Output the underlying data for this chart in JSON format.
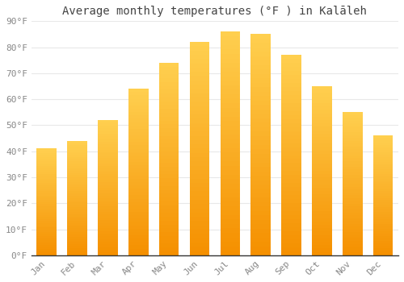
{
  "title": "Average monthly temperatures (°F ) in Kalāleh",
  "months": [
    "Jan",
    "Feb",
    "Mar",
    "Apr",
    "May",
    "Jun",
    "Jul",
    "Aug",
    "Sep",
    "Oct",
    "Nov",
    "Dec"
  ],
  "values": [
    41,
    44,
    52,
    64,
    74,
    82,
    86,
    85,
    77,
    65,
    55,
    46
  ],
  "bar_color_top": "#FFC830",
  "bar_color_bottom": "#F59000",
  "ylim": [
    0,
    90
  ],
  "yticks": [
    0,
    10,
    20,
    30,
    40,
    50,
    60,
    70,
    80,
    90
  ],
  "ytick_labels": [
    "0°F",
    "10°F",
    "20°F",
    "30°F",
    "40°F",
    "50°F",
    "60°F",
    "70°F",
    "80°F",
    "90°F"
  ],
  "background_color": "#ffffff",
  "plot_bg_color": "#ffffff",
  "grid_color": "#e8e8e8",
  "title_fontsize": 10,
  "tick_fontsize": 8,
  "tick_color": "#888888",
  "title_color": "#444444",
  "bar_width": 0.65,
  "spine_color": "#333333"
}
